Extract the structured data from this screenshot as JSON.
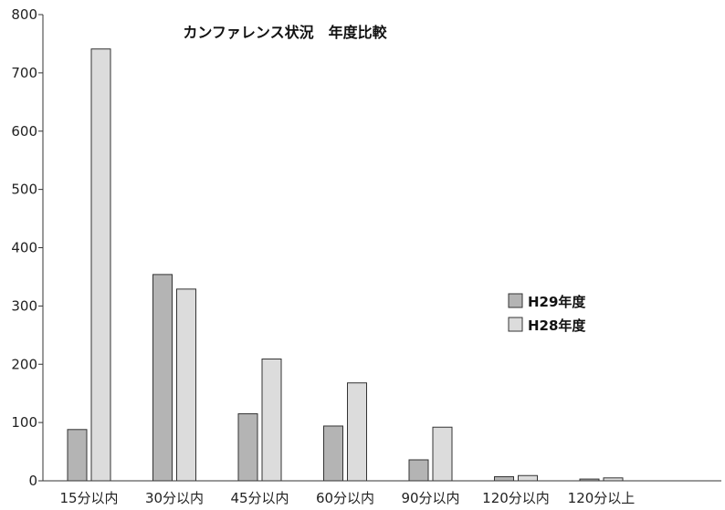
{
  "chart_data": {
    "type": "bar",
    "title": "カンファレンス状況　年度比較",
    "categories": [
      "15分以内",
      "30分以内",
      "45分以内",
      "60分以内",
      "90分以内",
      "120分以内",
      "120分以上"
    ],
    "series": [
      {
        "name": "H29年度",
        "color": "#b4b4b4",
        "values": [
          88,
          354,
          115,
          94,
          36,
          7,
          3
        ]
      },
      {
        "name": "H28年度",
        "color": "#dcdcdc",
        "values": [
          741,
          329,
          209,
          168,
          92,
          9,
          5
        ]
      }
    ],
    "ylim": [
      0,
      800
    ],
    "yticks": [
      "0",
      "100",
      "200",
      "300",
      "400",
      "500",
      "600",
      "700",
      "800"
    ],
    "xlabel": "",
    "ylabel": "",
    "grid": false,
    "legend_position": "right"
  }
}
